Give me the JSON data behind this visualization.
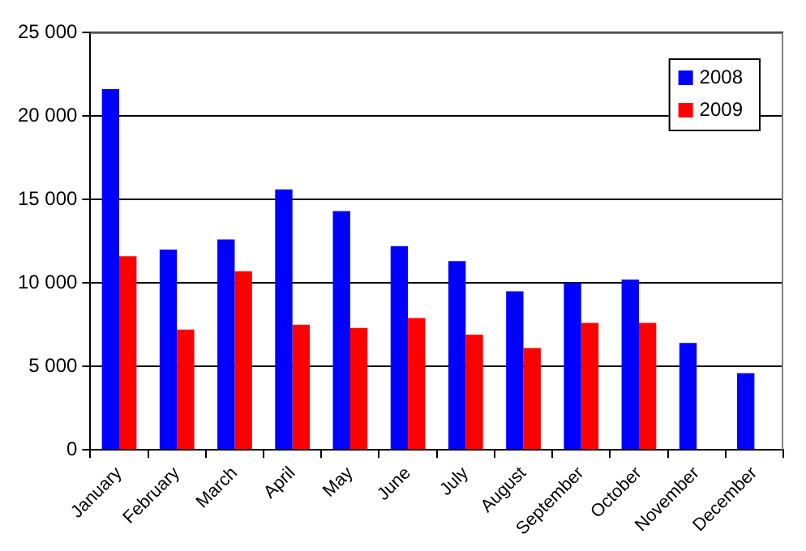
{
  "chart_data": {
    "type": "bar",
    "categories": [
      "January",
      "February",
      "March",
      "April",
      "May",
      "June",
      "July",
      "August",
      "September",
      "October",
      "November",
      "December"
    ],
    "series": [
      {
        "name": "2008",
        "color": "#0000ff",
        "values": [
          21600,
          12000,
          12600,
          15600,
          14300,
          12200,
          11300,
          9500,
          10000,
          10200,
          6400,
          4600
        ]
      },
      {
        "name": "2009",
        "color": "#ff0000",
        "values": [
          11600,
          7200,
          10700,
          7500,
          7300,
          7900,
          6900,
          6100,
          7600,
          7600,
          null,
          null
        ]
      }
    ],
    "ylim": [
      0,
      25000
    ],
    "yticks": [
      0,
      {
        "value": 5000,
        "label": "5 000"
      },
      {
        "value": 10000,
        "label": "10 000"
      },
      {
        "value": 15000,
        "label": "15 000"
      },
      {
        "value": 20000,
        "label": "20 000"
      },
      {
        "value": 25000,
        "label": "25 000"
      }
    ],
    "grid": "y",
    "legend": "top right"
  }
}
